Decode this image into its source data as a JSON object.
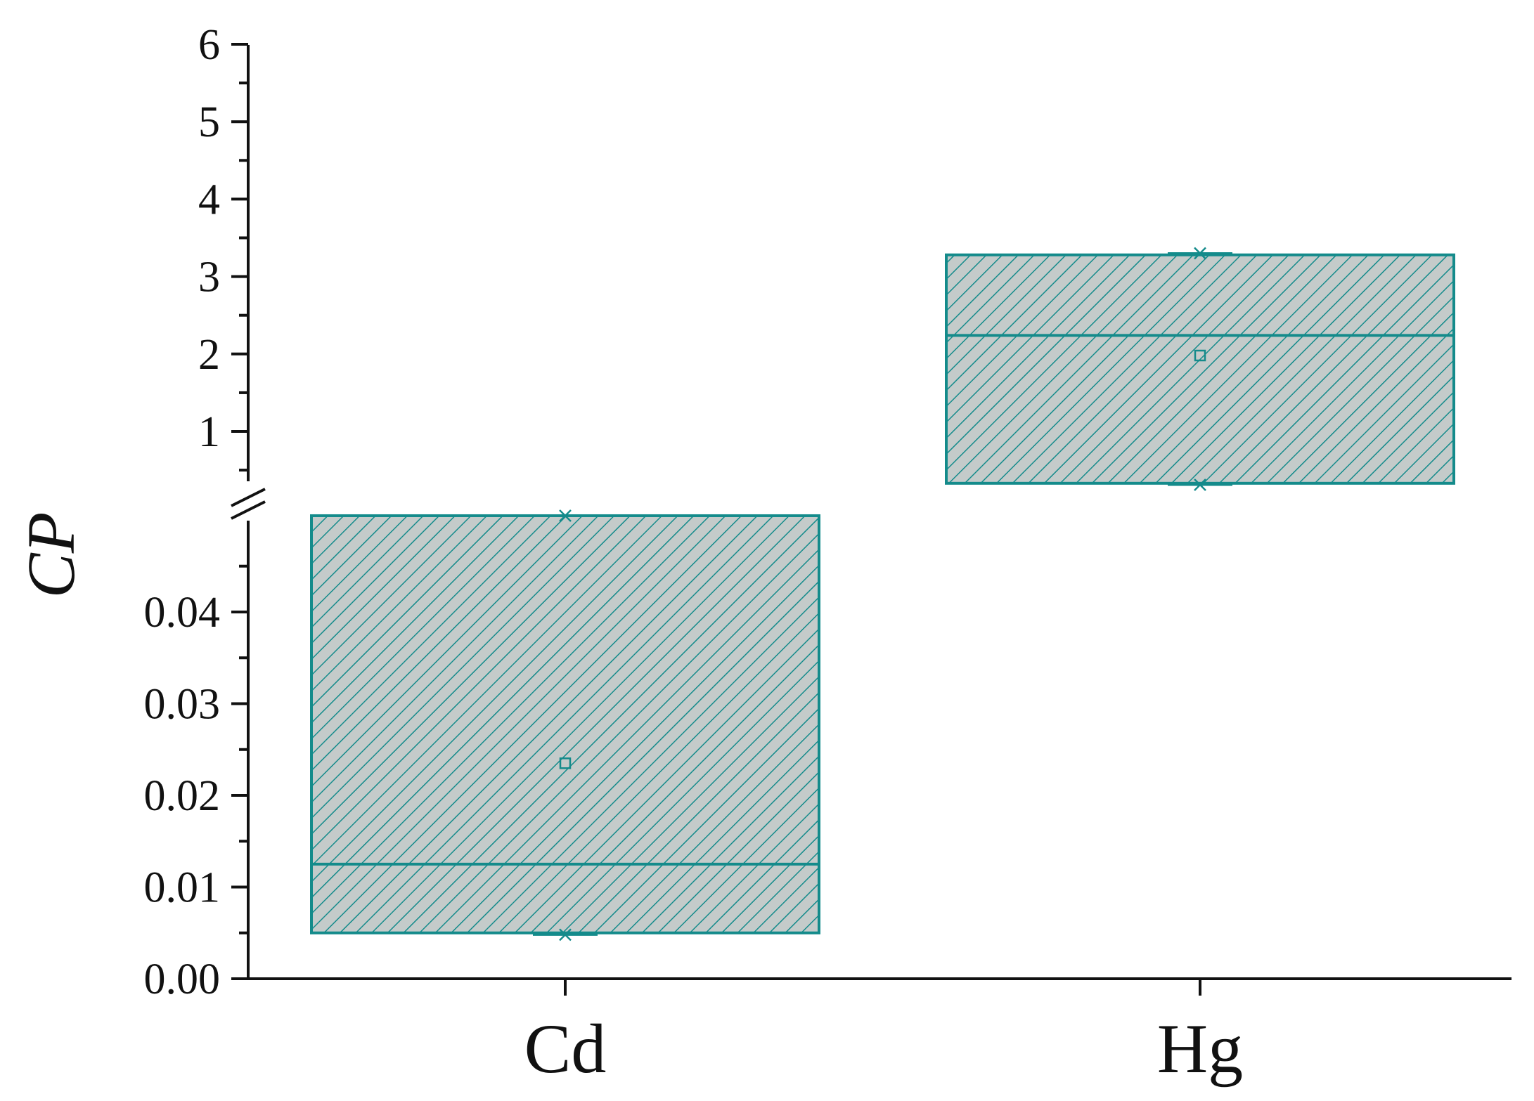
{
  "chart_data": {
    "type": "box",
    "ylabel": "CP",
    "xlabel": "",
    "title": "",
    "categories": [
      "Cd",
      "Hg"
    ],
    "y_axis_break": true,
    "y_lower_segment": {
      "range": [
        0,
        0.0505
      ],
      "ticks": [
        "0.00",
        "0.01",
        "0.02",
        "0.03",
        "0.04"
      ]
    },
    "y_upper_segment": {
      "range": [
        0.05,
        6
      ],
      "ticks": [
        "1",
        "2",
        "3",
        "4",
        "5",
        "6"
      ]
    },
    "boxes": [
      {
        "category": "Cd",
        "q1": 0.005,
        "median": 0.0125,
        "q3": 0.0505,
        "mean": 0.0235,
        "min": 0.0048,
        "max": 0.0505
      },
      {
        "category": "Hg",
        "q1": 0.33,
        "median": 2.24,
        "q3": 3.28,
        "mean": 1.98,
        "min": 0.31,
        "max": 3.3
      }
    ],
    "grid": false,
    "legend": "none",
    "colors": {
      "box_edge": "#148b8b",
      "box_fill": "#c4cbca",
      "hatch": "#148b8b",
      "axis": "#111111"
    }
  }
}
